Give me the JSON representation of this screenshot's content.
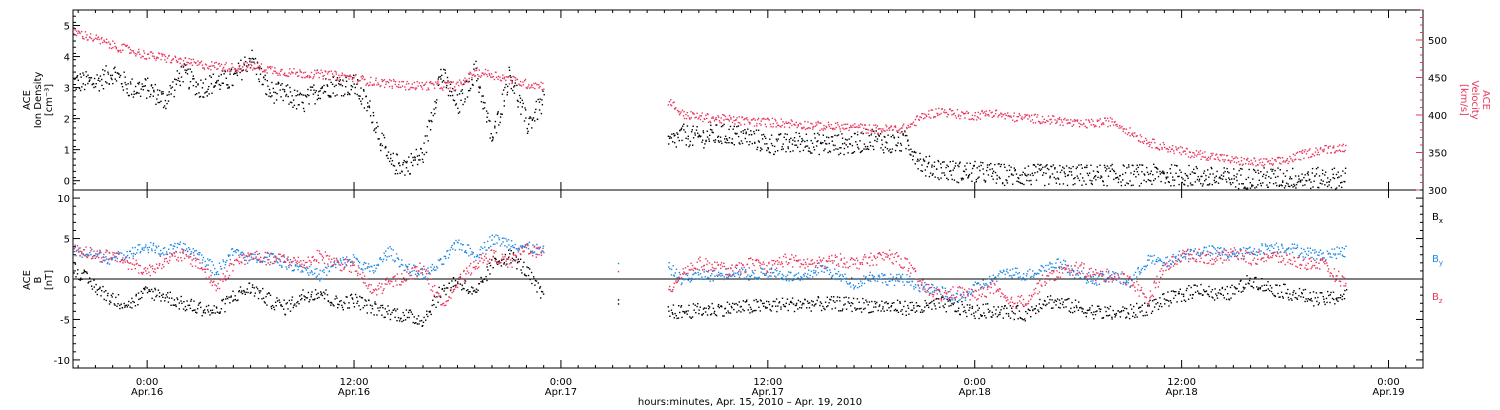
{
  "chart_data": [
    {
      "type": "scatter",
      "panel": "top",
      "ylabel_left": [
        "ACE",
        "Ion Density",
        "[cm⁻³]"
      ],
      "ylabel_right": [
        "ACE",
        "Velocity",
        "[km/s]"
      ],
      "ylim_left": [
        -0.3,
        5.5
      ],
      "ylim_right": [
        300,
        540
      ],
      "yticks_left": [
        0,
        1,
        2,
        3,
        4,
        5
      ],
      "yticks_right": [
        300,
        350,
        400,
        450,
        500
      ],
      "series": [
        {
          "name": "Ion Density",
          "color": "#000000",
          "axis": "left",
          "segments": [
            {
              "t": [
                -4.3,
                -3.0,
                -2.0,
                -1.0,
                0.0,
                1.0,
                2.0,
                3.0,
                4.0,
                5.0,
                6.0,
                7.0,
                8.0,
                9.0,
                10.0,
                11.0,
                12.0,
                13.0,
                14.0,
                15.0,
                16.0,
                17.0,
                18.0,
                19.0,
                20.0,
                21.0,
                22.0,
                23.0
              ],
              "v": [
                3.2,
                3.2,
                3.5,
                3.0,
                3.0,
                2.6,
                3.5,
                3.0,
                3.2,
                3.3,
                4.0,
                2.9,
                2.8,
                2.5,
                3.0,
                3.1,
                3.1,
                2.2,
                0.6,
                0.5,
                0.9,
                3.5,
                2.4,
                3.6,
                1.3,
                3.5,
                1.8,
                2.6
              ]
            },
            {
              "t": [
                30.2,
                31.0,
                32.0,
                33.0,
                34.0,
                35.0,
                36.0,
                37.0,
                38.0,
                39.0,
                40.0,
                41.0,
                42.0,
                43.0,
                44.0,
                45.0,
                46.0,
                47.0,
                48.0,
                50.0,
                52.0,
                54.0,
                56.0,
                58.0,
                60.0,
                62.0,
                64.0,
                66.0,
                68.0,
                69.5
              ],
              "v": [
                1.2,
                1.5,
                1.4,
                1.5,
                1.5,
                1.4,
                1.2,
                1.2,
                1.3,
                1.2,
                1.2,
                1.2,
                1.4,
                1.2,
                1.3,
                0.5,
                0.4,
                0.3,
                0.3,
                0.2,
                0.2,
                0.2,
                0.2,
                0.2,
                0.2,
                0.1,
                0.1,
                0.1,
                0.1,
                0.1
              ]
            }
          ]
        },
        {
          "name": "Velocity",
          "color": "#e8385d",
          "axis": "right",
          "segments": [
            {
              "t": [
                -4.3,
                -3.0,
                -2.0,
                -1.0,
                0.0,
                1.0,
                2.0,
                3.0,
                4.0,
                5.0,
                6.0,
                7.0,
                8.0,
                9.0,
                10.0,
                11.0,
                12.0,
                13.0,
                14.0,
                15.0,
                16.0,
                17.0,
                18.0,
                19.0,
                20.0,
                21.0,
                22.0,
                23.0
              ],
              "v": [
                512,
                502,
                493,
                487,
                480,
                477,
                472,
                468,
                466,
                464,
                466,
                462,
                458,
                456,
                455,
                453,
                450,
                445,
                443,
                440,
                440,
                440,
                440,
                458,
                455,
                448,
                442,
                440
              ]
            },
            {
              "t": [
                30.2,
                31.0,
                32.0,
                33.0,
                34.0,
                35.0,
                36.0,
                37.0,
                38.0,
                39.0,
                40.0,
                41.0,
                42.0,
                43.0,
                44.0,
                45.0,
                46.0,
                47.0,
                48.0,
                49.0,
                50.0,
                51.0,
                52.0,
                53.0,
                54.0,
                55.0,
                56.0,
                57.0,
                58.0,
                59.0,
                60.0,
                61.0,
                62.0,
                63.0,
                64.0,
                65.0,
                66.0,
                67.0,
                68.0,
                69.5
              ],
              "v": [
                420,
                402,
                398,
                396,
                394,
                392,
                391,
                390,
                388,
                386,
                385,
                384,
                382,
                382,
                383,
                400,
                406,
                402,
                400,
                404,
                398,
                397,
                395,
                393,
                388,
                390,
                392,
                378,
                365,
                358,
                352,
                348,
                345,
                340,
                338,
                337,
                340,
                348,
                354,
                358
              ]
            }
          ]
        }
      ]
    },
    {
      "type": "scatter",
      "panel": "bottom",
      "ylabel": [
        "ACE",
        "B",
        "[nT]"
      ],
      "ylim": [
        -11,
        11
      ],
      "yticks": [
        -10,
        -5,
        0,
        5,
        10
      ],
      "zero_line": true,
      "series": [
        {
          "name": "Bx",
          "color": "#000000",
          "segments": [
            {
              "t": [
                -4.3,
                -3.0,
                -2.0,
                -1.0,
                0.0,
                1.0,
                2.0,
                3.0,
                4.0,
                5.0,
                6.0,
                7.0,
                8.0,
                9.0,
                10.0,
                11.0,
                12.0,
                13.0,
                14.0,
                15.0,
                16.0,
                17.0,
                18.0,
                19.0,
                20.0,
                21.0,
                22.0,
                23.0
              ],
              "v": [
                1.5,
                -1.0,
                -2.5,
                -3.0,
                -1.5,
                -2.0,
                -3.0,
                -3.5,
                -4.0,
                -2.0,
                -1.0,
                -2.5,
                -3.5,
                -2.0,
                -1.5,
                -3.0,
                -2.5,
                -3.5,
                -4.0,
                -4.5,
                -5.0,
                -1.5,
                0.0,
                -2.0,
                2.0,
                3.0,
                1.0,
                -2.5
              ]
            },
            {
              "t": [
                30.2,
                31.0,
                32.0,
                34.0,
                36.0,
                38.0,
                40.0,
                42.0,
                44.0,
                45.0,
                46.0,
                47.0,
                48.0,
                49.0,
                50.0,
                51.0,
                52.0,
                53.0,
                54.0,
                55.0,
                56.0,
                57.0,
                58.0,
                59.0,
                60.0,
                61.0,
                62.0,
                63.0,
                64.0,
                65.0,
                66.0,
                67.0,
                68.0,
                69.5
              ],
              "v": [
                -4.0,
                -4.0,
                -3.8,
                -3.5,
                -3.2,
                -3.0,
                -3.0,
                -3.2,
                -3.5,
                -3.5,
                -3.0,
                -3.5,
                -4.0,
                -3.8,
                -4.0,
                -4.2,
                -2.5,
                -3.0,
                -3.5,
                -4.0,
                -4.2,
                -4.0,
                -3.5,
                -2.5,
                -2.0,
                -1.0,
                -2.0,
                -1.5,
                0.0,
                -1.0,
                -1.5,
                -2.0,
                -2.5,
                -2.0
              ]
            }
          ]
        },
        {
          "name": "By",
          "color": "#1e88e5",
          "segments": [
            {
              "t": [
                -4.3,
                -3.0,
                -2.0,
                -1.0,
                0.0,
                1.0,
                2.0,
                3.0,
                4.0,
                5.0,
                6.0,
                7.0,
                8.0,
                9.0,
                10.0,
                11.0,
                12.0,
                13.0,
                14.0,
                15.0,
                16.0,
                17.0,
                18.0,
                19.0,
                20.0,
                21.0,
                22.0,
                23.0
              ],
              "v": [
                3.5,
                3.0,
                2.5,
                3.5,
                4.0,
                3.5,
                4.0,
                3.0,
                1.0,
                3.5,
                2.5,
                3.0,
                2.0,
                1.5,
                0.5,
                2.0,
                2.5,
                1.0,
                3.5,
                1.5,
                0.5,
                2.0,
                4.5,
                3.0,
                5.0,
                4.5,
                4.0,
                3.5
              ]
            },
            {
              "t": [
                30.2,
                31.0,
                32.0,
                33.0,
                34.0,
                35.0,
                36.0,
                37.0,
                38.0,
                39.0,
                40.0,
                41.0,
                42.0,
                43.0,
                44.0,
                45.0,
                46.0,
                47.0,
                48.0,
                49.0,
                50.0,
                51.0,
                52.0,
                53.0,
                54.0,
                55.0,
                56.0,
                57.0,
                58.0,
                59.0,
                60.0,
                61.0,
                62.0,
                63.0,
                64.0,
                65.0,
                66.0,
                67.0,
                68.0,
                69.5
              ],
              "v": [
                1.5,
                0.0,
                0.5,
                0.5,
                1.0,
                0.5,
                1.0,
                0.5,
                0.0,
                1.5,
                0.5,
                -0.5,
                0.5,
                0.0,
                0.0,
                -1.0,
                -1.5,
                -2.5,
                -1.0,
                0.0,
                1.0,
                0.5,
                1.5,
                2.0,
                0.5,
                0.0,
                0.5,
                -0.5,
                2.5,
                2.0,
                3.0,
                3.5,
                3.5,
                3.0,
                3.5,
                4.0,
                4.0,
                3.5,
                3.0,
                3.5
              ]
            }
          ]
        },
        {
          "name": "Bz",
          "color": "#e8385d",
          "segments": [
            {
              "t": [
                -4.3,
                -3.0,
                -2.0,
                -1.0,
                0.0,
                1.0,
                2.0,
                3.0,
                4.0,
                5.0,
                6.0,
                7.0,
                8.0,
                9.0,
                10.0,
                11.0,
                12.0,
                13.0,
                14.0,
                15.0,
                16.0,
                17.0,
                18.0,
                19.0,
                20.0,
                21.0,
                22.0,
                23.0
              ],
              "v": [
                4.0,
                3.0,
                3.0,
                2.0,
                1.0,
                2.5,
                3.0,
                2.0,
                -1.0,
                2.0,
                3.0,
                2.5,
                2.5,
                2.0,
                3.0,
                2.0,
                1.5,
                -1.5,
                -0.5,
                0.5,
                1.5,
                -3.0,
                -0.5,
                2.0,
                3.0,
                2.0,
                4.0,
                3.0
              ]
            },
            {
              "t": [
                30.2,
                31.0,
                32.0,
                33.0,
                34.0,
                35.0,
                36.0,
                37.0,
                38.0,
                39.0,
                40.0,
                41.0,
                42.0,
                43.0,
                44.0,
                45.0,
                46.0,
                47.0,
                48.0,
                49.0,
                50.0,
                51.0,
                52.0,
                53.0,
                54.0,
                55.0,
                56.0,
                57.0,
                58.0,
                59.0,
                60.0,
                61.0,
                62.0,
                63.0,
                64.0,
                65.0,
                66.0,
                67.0,
                68.0,
                69.5
              ],
              "v": [
                -1.5,
                1.0,
                2.0,
                1.5,
                1.0,
                2.0,
                1.5,
                2.5,
                2.0,
                2.0,
                2.5,
                2.0,
                2.5,
                3.0,
                2.0,
                -1.0,
                -2.0,
                -1.5,
                -2.0,
                -1.0,
                -3.0,
                -2.5,
                0.0,
                1.0,
                1.5,
                0.5,
                0.5,
                0.0,
                -2.5,
                1.5,
                3.0,
                3.0,
                2.5,
                3.5,
                2.5,
                3.0,
                2.5,
                2.0,
                2.0,
                -0.5
              ]
            }
          ]
        }
      ]
    }
  ],
  "xaxis": {
    "range": [
      -4.3,
      74
    ],
    "ticks": [
      {
        "t": 0,
        "time": "0:00",
        "date": "Apr.16"
      },
      {
        "t": 12,
        "time": "12:00",
        "date": "Apr.16"
      },
      {
        "t": 24,
        "time": "0:00",
        "date": "Apr.17"
      },
      {
        "t": 36,
        "time": "12:00",
        "date": "Apr.17"
      },
      {
        "t": 48,
        "time": "0:00",
        "date": "Apr.18"
      },
      {
        "t": 60,
        "time": "12:00",
        "date": "Apr.18"
      },
      {
        "t": 72,
        "time": "0:00",
        "date": "Apr.19"
      }
    ],
    "label": "hours:minutes, Apr. 15, 2010 – Apr. 19, 2010"
  },
  "legend": {
    "bx": "B",
    "by": "B",
    "bz": "B",
    "bx_sub": "x",
    "by_sub": "y",
    "bz_sub": "z"
  },
  "colors": {
    "pink": "#e8385d",
    "blue": "#1e88e5",
    "black": "#000000"
  }
}
